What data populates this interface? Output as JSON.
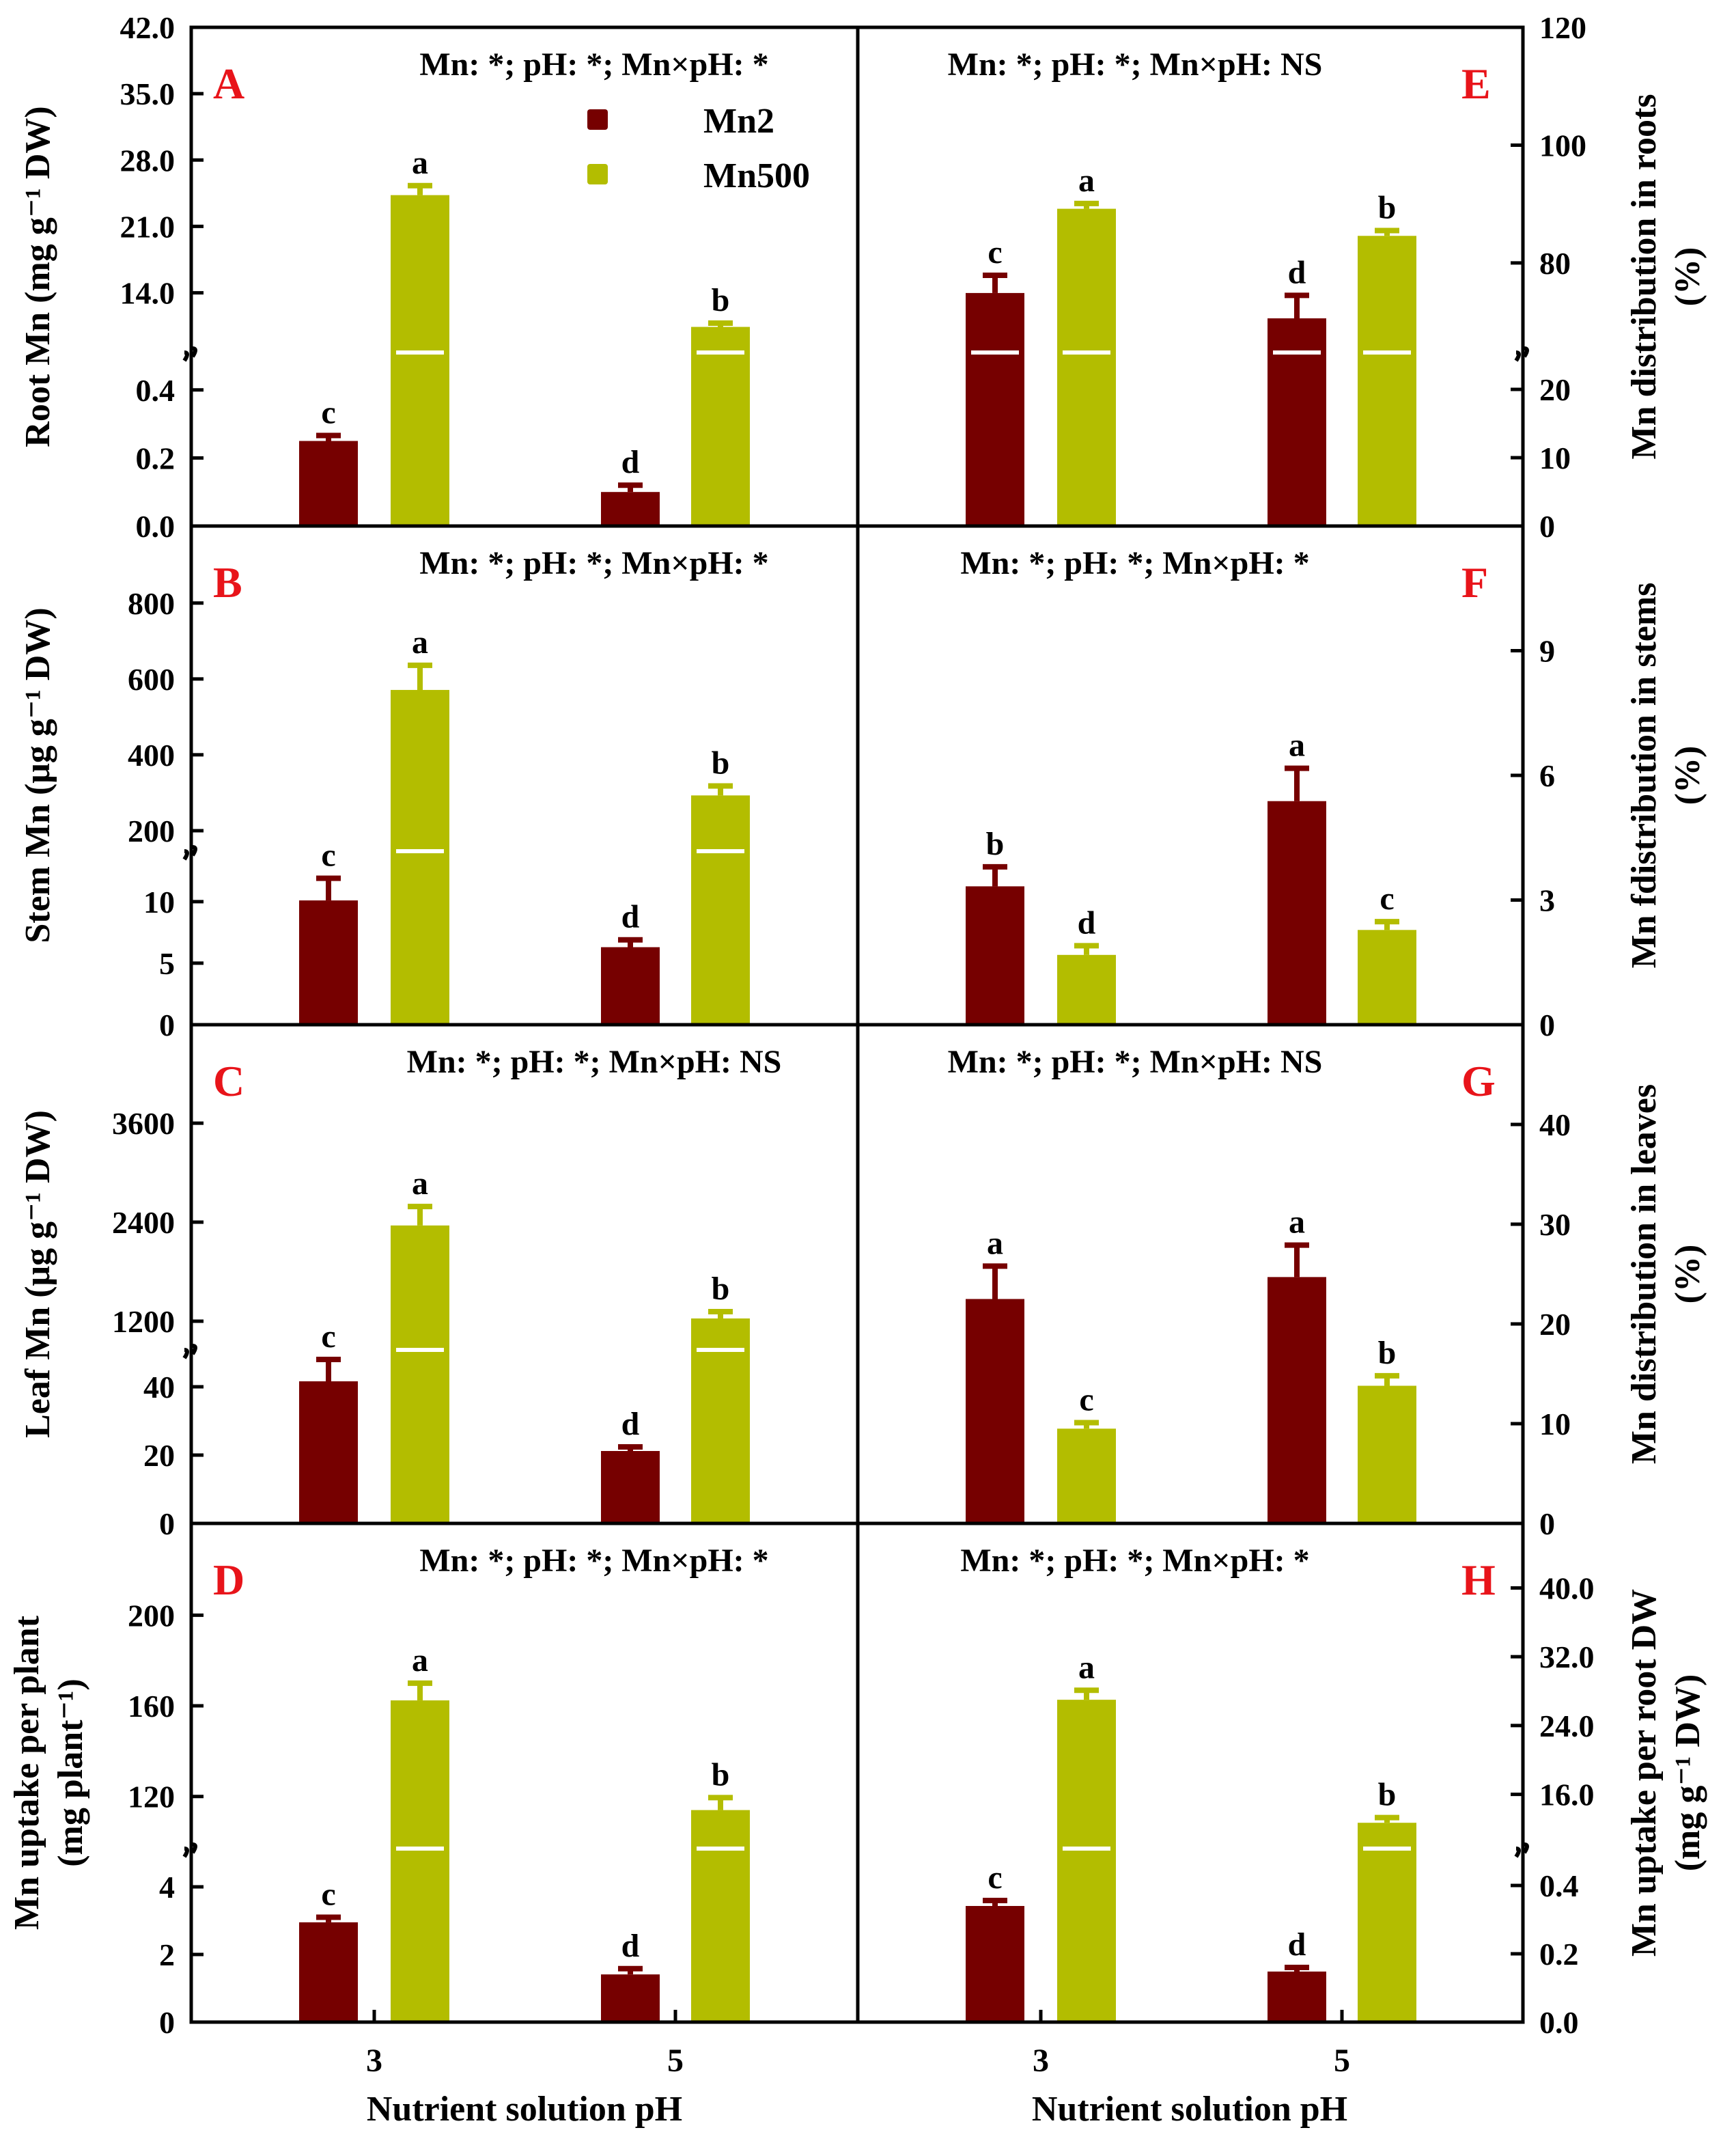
{
  "colors": {
    "Mn2": "#760000",
    "Mn500": "#b3bd00",
    "panel_letter": "#e8141a"
  },
  "x_axis": {
    "title": "Nutrient solution pH",
    "categories": [
      "3",
      "5"
    ]
  },
  "legend": {
    "items": [
      "Mn2",
      "Mn500"
    ],
    "placement": "top (panel A)"
  },
  "chart_data": [
    {
      "type": "bar",
      "panel": "A",
      "stats": "Mn: *; pH: *; Mn×pH: *",
      "ylabel": [
        "Root Mn (mg g⁻¹ DW)"
      ],
      "y_segments": [
        {
          "range": [
            0,
            0.51
          ],
          "ticks": [
            "0.0",
            "0.2",
            "0.4"
          ]
        },
        {
          "range": [
            7.7,
            42
          ],
          "ticks": [
            "14.0",
            "21.0",
            "28.0",
            "35.0",
            "42.0"
          ]
        }
      ],
      "categories": [
        "3",
        "5"
      ],
      "series": [
        {
          "name": "Mn2",
          "values": [
            0.25,
            0.1
          ],
          "errors": [
            0.016,
            0.02
          ],
          "letters": [
            "c",
            "d"
          ]
        },
        {
          "name": "Mn500",
          "values": [
            24.3,
            10.4
          ],
          "errors": [
            1.0,
            0.4
          ],
          "letters": [
            "a",
            "b"
          ]
        }
      ]
    },
    {
      "type": "bar",
      "panel": "B",
      "stats": "Mn: *; pH: *; Mn×pH: *",
      "ylabel": [
        "Stem Mn (μg g⁻¹ DW)"
      ],
      "y_segments": [
        {
          "range": [
            0,
            14.1
          ],
          "ticks": [
            "0",
            "5",
            "10"
          ]
        },
        {
          "range": [
            146,
            1003
          ],
          "ticks": [
            "200",
            "400",
            "600",
            "800"
          ]
        }
      ],
      "categories": [
        "3",
        "5"
      ],
      "series": [
        {
          "name": "Mn2",
          "values": [
            10.1,
            6.3
          ],
          "errors": [
            1.8,
            0.6
          ],
          "letters": [
            "c",
            "d"
          ]
        },
        {
          "name": "Mn500",
          "values": [
            571,
            293
          ],
          "errors": [
            65,
            25
          ],
          "letters": [
            "a",
            "b"
          ]
        }
      ]
    },
    {
      "type": "bar",
      "panel": "C",
      "stats": "Mn: *; pH: *; Mn×pH: NS",
      "ylabel": [
        "Leaf Mn (μg g⁻¹ DW)"
      ],
      "y_segments": [
        {
          "range": [
            0,
            50.8
          ],
          "ticks": [
            "0",
            "20",
            "40"
          ]
        },
        {
          "range": [
            852,
            4793
          ],
          "ticks": [
            "1200",
            "2400",
            "3600"
          ]
        }
      ],
      "categories": [
        "3",
        "5"
      ],
      "series": [
        {
          "name": "Mn2",
          "values": [
            41.6,
            21.2
          ],
          "errors": [
            6.4,
            1.2
          ],
          "letters": [
            "c",
            "d"
          ]
        },
        {
          "name": "Mn500",
          "values": [
            2360,
            1233
          ],
          "errors": [
            230,
            83
          ],
          "letters": [
            "a",
            "b"
          ]
        }
      ]
    },
    {
      "type": "bar",
      "panel": "D",
      "stats": "Mn: *; pH: *; Mn×pH: *",
      "ylabel": [
        "Mn uptake per plant",
        "(mg plant⁻¹)"
      ],
      "y_segments": [
        {
          "range": [
            0,
            5.13
          ],
          "ticks": [
            "0",
            "2",
            "4"
          ]
        },
        {
          "range": [
            97,
            240.5
          ],
          "ticks": [
            "120",
            "160",
            "200"
          ]
        }
      ],
      "categories": [
        "3",
        "5"
      ],
      "series": [
        {
          "name": "Mn2",
          "values": [
            2.95,
            1.41
          ],
          "errors": [
            0.15,
            0.17
          ],
          "letters": [
            "c",
            "d"
          ]
        },
        {
          "name": "Mn500",
          "values": [
            162.4,
            114
          ],
          "errors": [
            7.6,
            5.5
          ],
          "letters": [
            "a",
            "b"
          ]
        }
      ]
    },
    {
      "type": "bar",
      "panel": "E",
      "stats": "Mn: *; pH: *; Mn×pH: NS",
      "ylabel": [
        "Mn distribution in roots",
        "(%)"
      ],
      "y_segments": [
        {
          "range": [
            0,
            25.4
          ],
          "ticks": [
            "0",
            "10",
            "20"
          ]
        },
        {
          "range": [
            64.8,
            120
          ],
          "ticks": [
            "80",
            "100",
            "120"
          ]
        }
      ],
      "categories": [
        "3",
        "5"
      ],
      "series": [
        {
          "name": "Mn2",
          "values": [
            74.9,
            70.6
          ],
          "errors": [
            3.0,
            3.9
          ],
          "letters": [
            "c",
            "d"
          ]
        },
        {
          "name": "Mn500",
          "values": [
            89.2,
            84.6
          ],
          "errors": [
            0.9,
            0.9
          ],
          "letters": [
            "a",
            "b"
          ]
        }
      ]
    },
    {
      "type": "bar",
      "panel": "F",
      "stats": "Mn: *; pH: *; Mn×pH: *",
      "ylabel": [
        "Mn fdistribution in stems",
        "(%)"
      ],
      "y_segments": [
        {
          "range": [
            0,
            12
          ],
          "ticks": [
            "0",
            "3",
            "6",
            "9"
          ]
        }
      ],
      "categories": [
        "3",
        "5"
      ],
      "series": [
        {
          "name": "Mn2",
          "values": [
            3.33,
            5.38
          ],
          "errors": [
            0.47,
            0.79
          ],
          "letters": [
            "b",
            "a"
          ]
        },
        {
          "name": "Mn500",
          "values": [
            1.68,
            2.28
          ],
          "errors": [
            0.22,
            0.2
          ],
          "letters": [
            "d",
            "c"
          ]
        }
      ]
    },
    {
      "type": "bar",
      "panel": "G",
      "stats": "Mn: *; pH: *; Mn×pH: NS",
      "ylabel": [
        "Mn distribution in leaves",
        "(%)"
      ],
      "y_segments": [
        {
          "range": [
            0,
            50
          ],
          "ticks": [
            "0",
            "10",
            "20",
            "30",
            "40"
          ]
        }
      ],
      "categories": [
        "3",
        "5"
      ],
      "series": [
        {
          "name": "Mn2",
          "values": [
            22.5,
            24.7
          ],
          "errors": [
            3.3,
            3.2
          ],
          "letters": [
            "a",
            "a"
          ]
        },
        {
          "name": "Mn500",
          "values": [
            9.5,
            13.8
          ],
          "errors": [
            0.6,
            1.0
          ],
          "letters": [
            "c",
            "b"
          ]
        }
      ]
    },
    {
      "type": "bar",
      "panel": "H",
      "stats": "Mn: *; pH: *; Mn×pH: *",
      "ylabel": [
        "Mn uptake per root DW",
        "(mg g⁻¹ DW)"
      ],
      "y_segments": [
        {
          "range": [
            0,
            0.508
          ],
          "ticks": [
            "0.0",
            "0.2",
            "0.4"
          ]
        },
        {
          "range": [
            9.7,
            47.5
          ],
          "ticks": [
            "16.0",
            "24.0",
            "32.0",
            "40.0"
          ]
        }
      ],
      "categories": [
        "3",
        "5"
      ],
      "series": [
        {
          "name": "Mn2",
          "values": [
            0.34,
            0.148
          ],
          "errors": [
            0.016,
            0.012
          ],
          "letters": [
            "c",
            "d"
          ]
        },
        {
          "name": "Mn500",
          "values": [
            27.0,
            12.7
          ],
          "errors": [
            1.1,
            0.6
          ],
          "letters": [
            "a",
            "b"
          ]
        }
      ]
    }
  ]
}
